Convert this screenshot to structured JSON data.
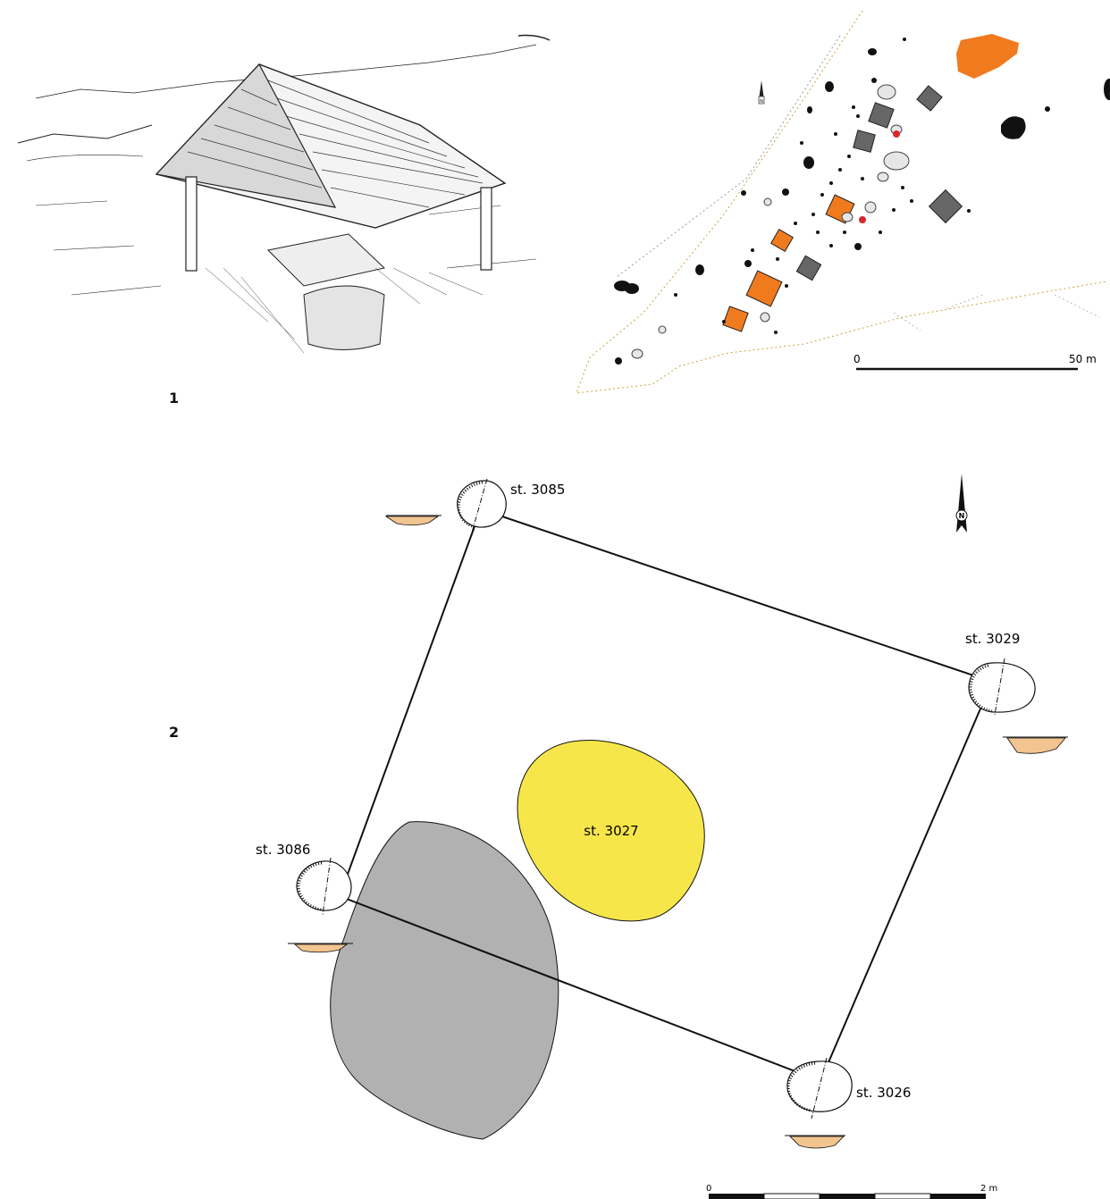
{
  "figure_labels": {
    "panel_1": "1",
    "panel_2": "2"
  },
  "site_map": {
    "scale_zero": "0",
    "scale_end": "50 m",
    "north_label": "N"
  },
  "plan": {
    "features": {
      "posthole_nw": "st. 3085",
      "posthole_ne": "st. 3029",
      "posthole_sw": "st. 3086",
      "posthole_se": "st. 3026",
      "central_pit": "st. 3027"
    },
    "north_label": "N",
    "scale_zero": "0",
    "scale_end": "2 m"
  },
  "colors": {
    "line": "#111111",
    "pit_yellow": "#f6e64a",
    "pit_grey": "#b0b1b0",
    "section_fill": "#f2c48f",
    "map_orange": "#f07a1e",
    "map_hatch": "#555555",
    "map_boundary": "#c9a53a"
  },
  "icons": [
    "north-arrow-icon",
    "scale-bar"
  ]
}
